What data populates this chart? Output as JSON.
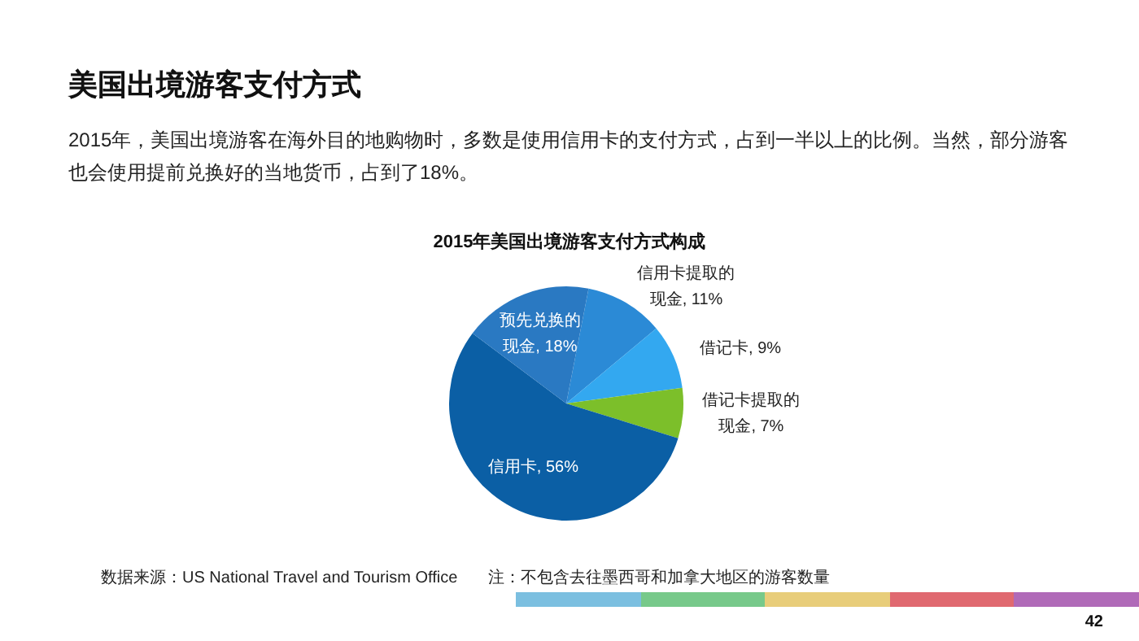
{
  "chart_data": {
    "type": "pie",
    "title": "美国出境游客支付方式",
    "subtitle": "2015年，美国出境游客在海外目的地购物时，多数是使用信用卡的支付方式，占到一半以上的比例。当然，部分游客也会使用提前兑换好的当地货币，占到了18%。",
    "annotations": [
      "2015年美国出境游客支付方式构成",
      "数据来源：US National Travel and Tourism Office",
      "注：不包含去往墨西哥和加拿大地区的游客数量",
      "42"
    ],
    "categories": [
      "信用卡提取的现金",
      "借记卡",
      "借记卡提取的现金",
      "信用卡",
      "预先兑换的现金"
    ],
    "values": [
      11,
      9,
      7,
      56,
      18
    ],
    "colors": [
      "#2b8ad6",
      "#33a8f0",
      "#7cbf2a",
      "#0b5fa5",
      "#2a79c2"
    ],
    "value_labels": [
      ", 11%",
      ", 9%",
      ", 7%",
      ", 56%",
      ", 18%"
    ]
  }
}
